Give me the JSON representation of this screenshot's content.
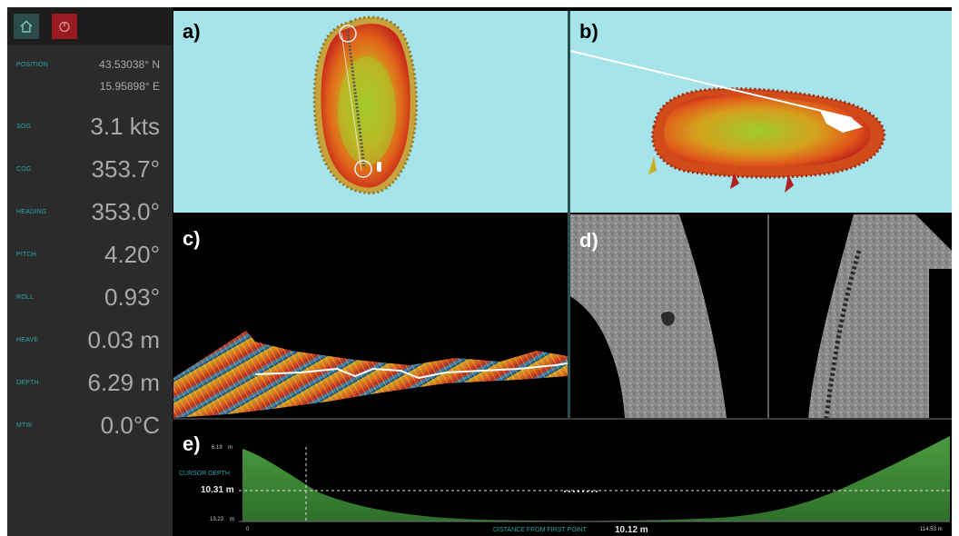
{
  "sidebar": {
    "top_buttons": [
      {
        "icon": "home-icon"
      },
      {
        "icon": "power-icon"
      }
    ],
    "telemetry": [
      {
        "label": "POSITION",
        "value": "43.53038° N",
        "value2": "15.95898° E"
      },
      {
        "label": "SOG",
        "value": "3.1 kts"
      },
      {
        "label": "COG",
        "value": "353.7°"
      },
      {
        "label": "HEADING",
        "value": "353.0°"
      },
      {
        "label": "PITCH",
        "value": "4.20°"
      },
      {
        "label": "ROLL",
        "value": "0.93°"
      },
      {
        "label": "HEAVE",
        "value": "0.03 m"
      },
      {
        "label": "DEPTH",
        "value": "6.29 m"
      },
      {
        "label": "MTW",
        "value": "0.0°C"
      }
    ]
  },
  "panels": {
    "a": {
      "label": "a)"
    },
    "b": {
      "label": "b)"
    },
    "c": {
      "label": "c)"
    },
    "d": {
      "label": "d)"
    },
    "e": {
      "label": "e)"
    }
  },
  "profile": {
    "top_depth": "6.19",
    "top_unit": "m",
    "cursor_label": "CURSOR DEPTH",
    "cursor_depth": "10.31 m",
    "bottom_depth": "13.23",
    "bottom_unit": "m",
    "x_start": "0",
    "x_end": "114.53 m",
    "x_label": "DISTANCE FROM FIRST POINT",
    "x_value": "10.12 m"
  },
  "colors": {
    "sidebar_bg": "#2b2b2b",
    "teal": "#2aa7a1",
    "power": "#9a1a22",
    "sky": "#a5e4ea",
    "profile_green": "#3e8c35"
  }
}
